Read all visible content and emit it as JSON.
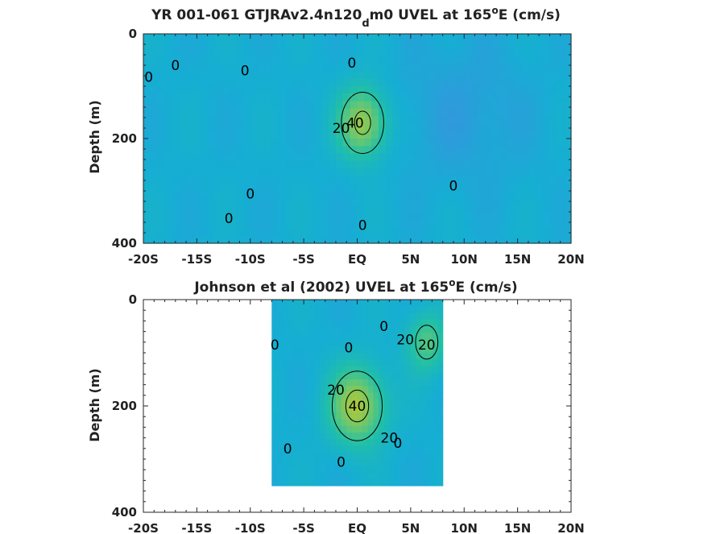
{
  "chart_data": [
    {
      "type": "heatmap",
      "title_main": "YR 001-061 GTJRAv2.4n120",
      "title_sub": "d",
      "title_mid": "m0 UVEL at 165",
      "title_sup": "o",
      "title_end": "E (cm/s)",
      "xlabel": "",
      "ylabel": "Depth (m)",
      "x_ticks": [
        -20,
        -15,
        -10,
        -5,
        0,
        5,
        10,
        15,
        20
      ],
      "x_tick_labels": [
        "-20S",
        "-15S",
        "-10S",
        "-5S",
        "EQ",
        "5N",
        "10N",
        "15N",
        "20N"
      ],
      "y_ticks": [
        0,
        200,
        400
      ],
      "y_tick_labels": [
        "0",
        "200",
        "400"
      ],
      "xlim": [
        -20,
        20
      ],
      "ylim": [
        400,
        0
      ],
      "data_extent": {
        "lat": [
          -20,
          20
        ],
        "depth": [
          0,
          400
        ]
      },
      "colormap": [
        "#3d8fe0",
        "#16aed3",
        "#20bfa8",
        "#62c776",
        "#a8c83e",
        "#d8c628"
      ],
      "color_range": [
        -20,
        60
      ],
      "features": [
        {
          "kind": "jet",
          "name": "EUC",
          "lat": 0.5,
          "depth": 170,
          "peak": 45,
          "lat_width": 2.2,
          "depth_width": 65
        },
        {
          "kind": "westward",
          "lat": 10,
          "depth": 150,
          "value": -8
        }
      ],
      "contour_labels": [
        {
          "text": "0",
          "lat": -17,
          "depth": 60
        },
        {
          "text": "0",
          "lat": -19.5,
          "depth": 82
        },
        {
          "text": "0",
          "lat": -10.5,
          "depth": 70
        },
        {
          "text": "0",
          "lat": -0.5,
          "depth": 55
        },
        {
          "text": "20",
          "lat": -1.5,
          "depth": 180
        },
        {
          "text": "40",
          "lat": -0.2,
          "depth": 170
        },
        {
          "text": "0",
          "lat": -10,
          "depth": 305
        },
        {
          "text": "0",
          "lat": -12,
          "depth": 352
        },
        {
          "text": "0",
          "lat": 0.5,
          "depth": 365
        },
        {
          "text": "0",
          "lat": 9,
          "depth": 290
        }
      ]
    },
    {
      "type": "heatmap",
      "title_main": "Johnson et al (2002) UVEL at 165",
      "title_sup": "o",
      "title_end": "E (cm/s)",
      "xlabel": "",
      "ylabel": "Depth (m)",
      "x_ticks": [
        -20,
        -15,
        -10,
        -5,
        0,
        5,
        10,
        15,
        20
      ],
      "x_tick_labels": [
        "-20S",
        "-15S",
        "-10S",
        "-5S",
        "EQ",
        "5N",
        "10N",
        "15N",
        "20N"
      ],
      "y_ticks": [
        0,
        200,
        400
      ],
      "y_tick_labels": [
        "0",
        "200",
        "400"
      ],
      "xlim": [
        -20,
        20
      ],
      "ylim": [
        400,
        0
      ],
      "data_extent": {
        "lat": [
          -8,
          8
        ],
        "depth": [
          0,
          350
        ]
      },
      "colormap": [
        "#3d8fe0",
        "#16aed3",
        "#20bfa8",
        "#62c776",
        "#a8c83e",
        "#d8c628"
      ],
      "color_range": [
        -20,
        60
      ],
      "features": [
        {
          "kind": "jet",
          "name": "EUC",
          "lat": 0,
          "depth": 200,
          "peak": 48,
          "lat_width": 2.5,
          "depth_width": 70
        },
        {
          "kind": "jet",
          "name": "NECC",
          "lat": 6.5,
          "depth": 80,
          "peak": 28,
          "lat_width": 1.8,
          "depth_width": 55
        }
      ],
      "contour_labels": [
        {
          "text": "0",
          "lat": -7.7,
          "depth": 85
        },
        {
          "text": "0",
          "lat": -0.8,
          "depth": 90
        },
        {
          "text": "0",
          "lat": 2.5,
          "depth": 50
        },
        {
          "text": "20",
          "lat": 4.5,
          "depth": 75
        },
        {
          "text": "20",
          "lat": 6.5,
          "depth": 85
        },
        {
          "text": "20",
          "lat": -2.0,
          "depth": 170
        },
        {
          "text": "40",
          "lat": 0,
          "depth": 200
        },
        {
          "text": "20",
          "lat": 3.0,
          "depth": 260
        },
        {
          "text": "0",
          "lat": 3.8,
          "depth": 270
        },
        {
          "text": "0",
          "lat": -6.5,
          "depth": 280
        },
        {
          "text": "0",
          "lat": -1.5,
          "depth": 305
        }
      ]
    }
  ]
}
